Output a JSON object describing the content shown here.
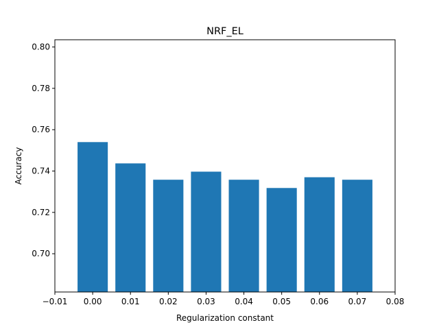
{
  "chart_data": {
    "type": "bar",
    "title": "NRF_EL",
    "xlabel": "Regularization constant",
    "ylabel": "Accuracy",
    "x": [
      0.0,
      0.01,
      0.02,
      0.03,
      0.04,
      0.05,
      0.06,
      0.07
    ],
    "values": [
      0.754,
      0.7437,
      0.7358,
      0.7397,
      0.7358,
      0.7318,
      0.737,
      0.7358
    ],
    "bar_width": 0.008,
    "xlim": [
      -0.01,
      0.08
    ],
    "ylim": [
      0.6815,
      0.8035
    ],
    "xticks": [
      "−0.01",
      "0.00",
      "0.01",
      "0.02",
      "0.03",
      "0.04",
      "0.05",
      "0.06",
      "0.07",
      "0.08"
    ],
    "xtick_values": [
      -0.01,
      0.0,
      0.01,
      0.02,
      0.03,
      0.04,
      0.05,
      0.06,
      0.07,
      0.08
    ],
    "yticks": [
      "0.70",
      "0.72",
      "0.74",
      "0.76",
      "0.78",
      "0.80"
    ],
    "ytick_values": [
      0.7,
      0.72,
      0.74,
      0.76,
      0.78,
      0.8
    ],
    "bar_color": "#1f77b4",
    "grid": false,
    "legend": "none"
  }
}
